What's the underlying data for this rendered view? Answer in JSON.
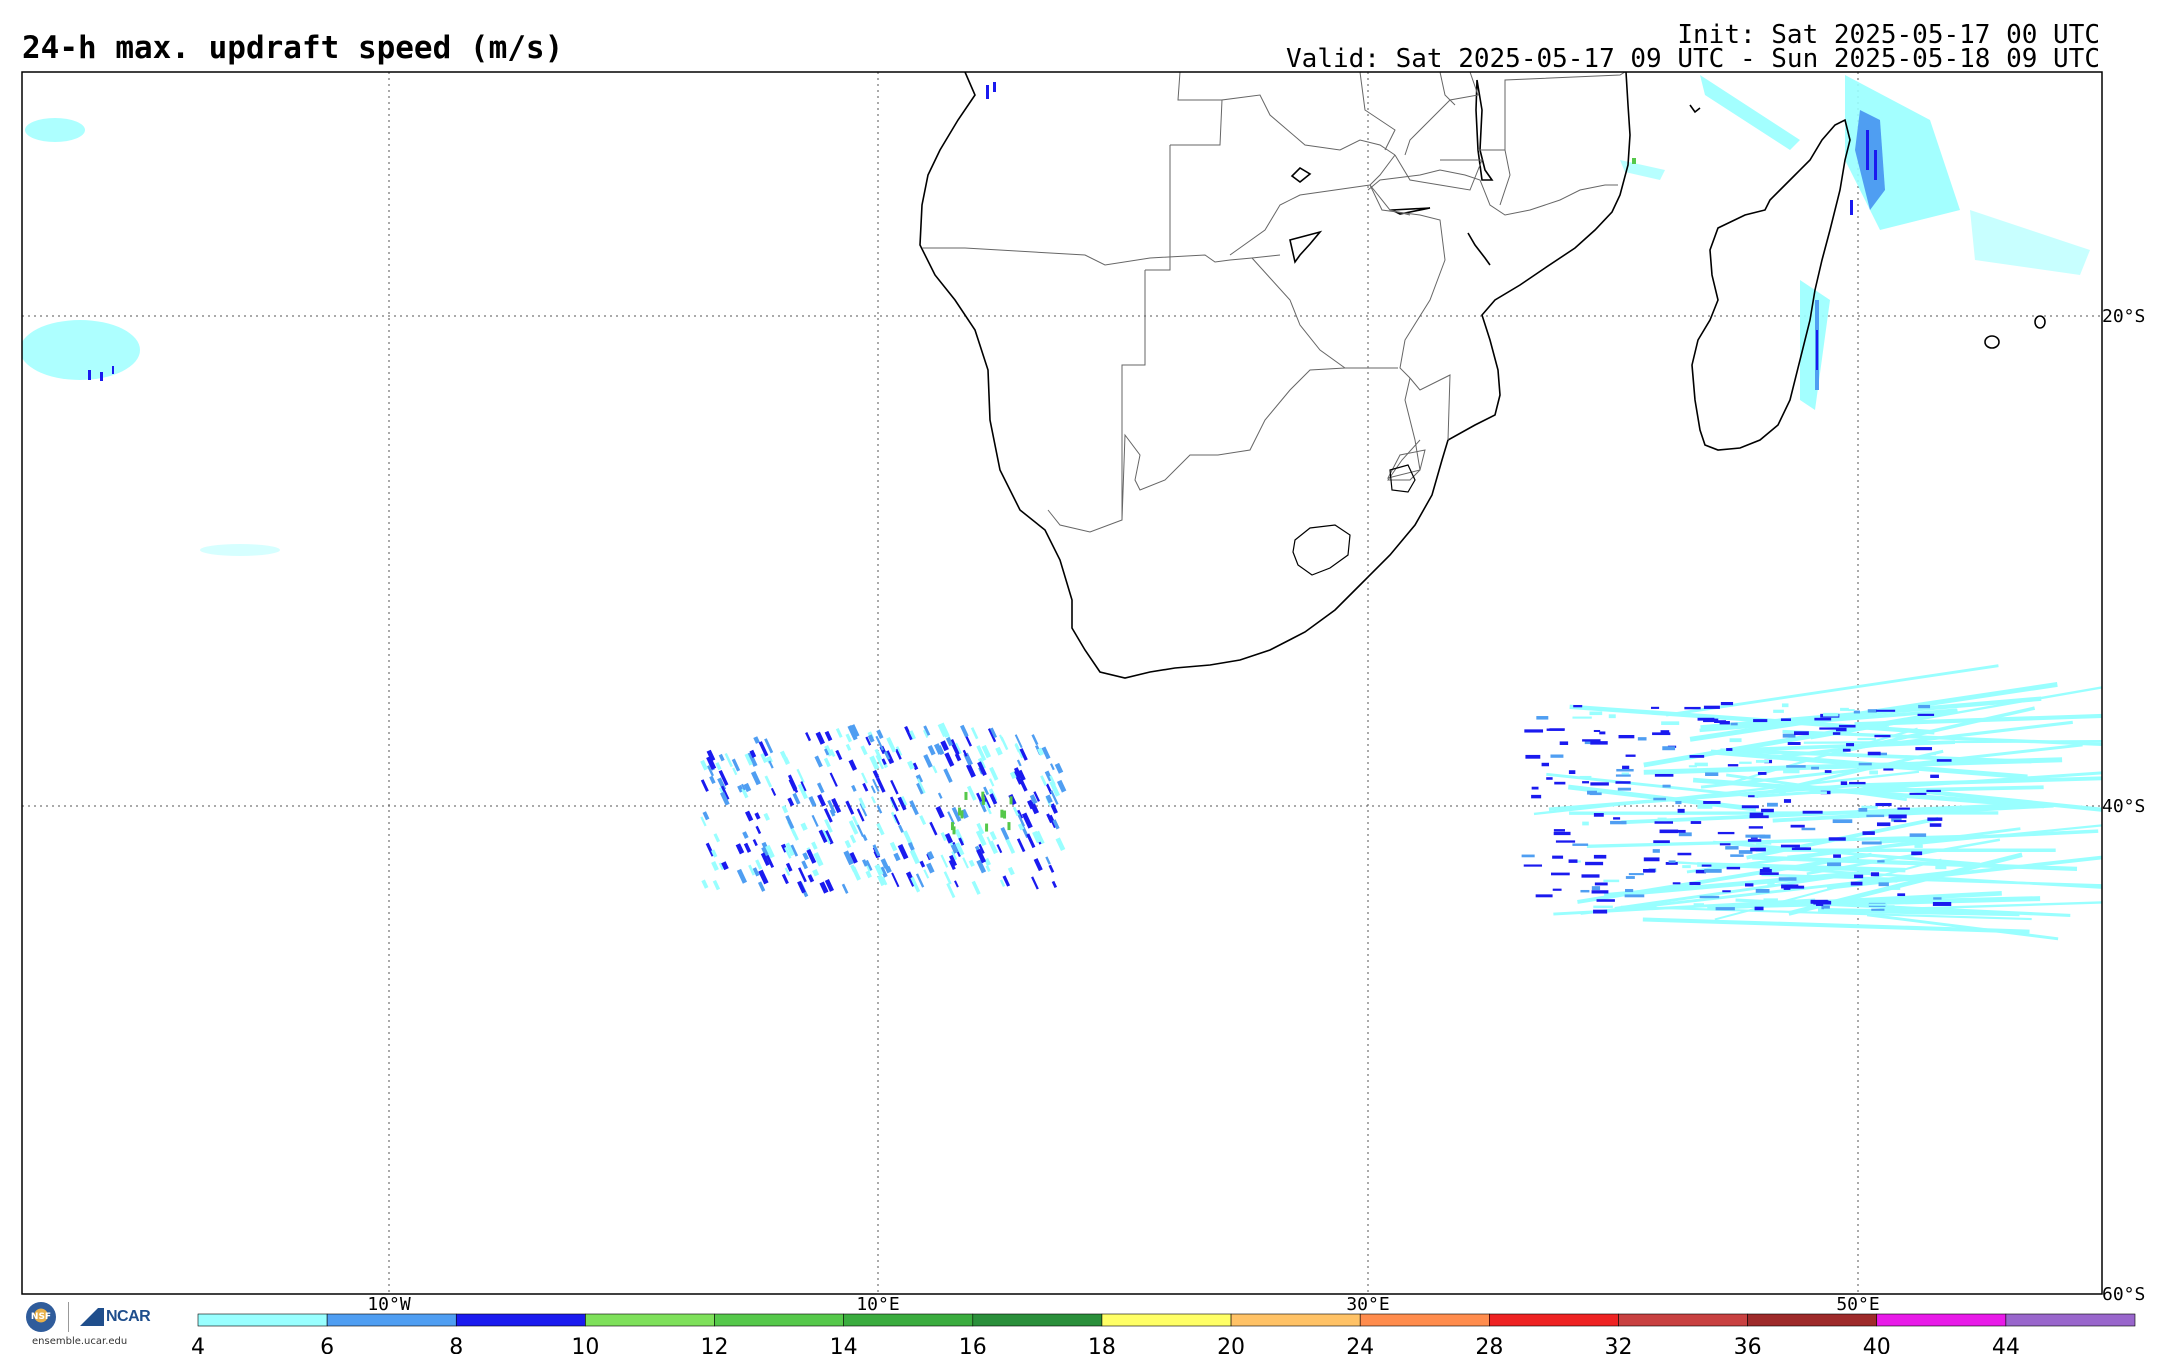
{
  "header": {
    "title": "24-h max. updraft speed (m/s)",
    "init": "Init: Sat 2025-05-17 00 UTC",
    "valid": "Valid: Sat 2025-05-17 09 UTC - Sun 2025-05-18 09 UTC"
  },
  "map": {
    "region": "Southern Africa and South Atlantic / SW Indian Ocean",
    "lon_labels": [
      "10°W",
      "10°E",
      "30°E",
      "50°E"
    ],
    "lat_labels": [
      "20°S",
      "40°S",
      "60°S"
    ]
  },
  "colorbar": {
    "ticks": [
      "4",
      "6",
      "8",
      "10",
      "12",
      "14",
      "16",
      "18",
      "20",
      "24",
      "28",
      "32",
      "36",
      "40",
      "44"
    ],
    "colors": [
      "#99ffff",
      "#4f9ef2",
      "#1a1aef",
      "#7ee05a",
      "#55c84a",
      "#3aac3e",
      "#2a8f3a",
      "#ffff66",
      "#ffc266",
      "#ff8c4d",
      "#ee2222",
      "#c84040",
      "#9e2a2a",
      "#e81ae8",
      "#9966cc"
    ]
  },
  "logos": {
    "nsf": "NSF",
    "ncar": "NCAR",
    "site": "ensemble.ucar.edu"
  }
}
